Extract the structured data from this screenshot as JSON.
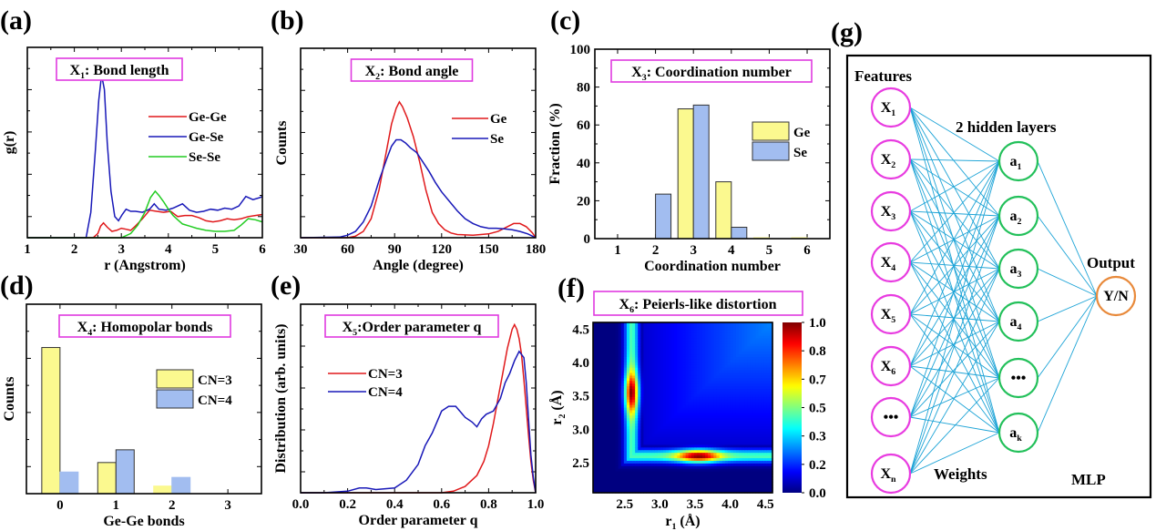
{
  "chart_data": [
    {
      "id": "a",
      "panel_label": "(a)",
      "type": "line",
      "title": "X1: Bond length",
      "title_main": "X",
      "title_sub": "1",
      "title_rest": ": Bond length",
      "xlabel": "r (Angstrom)",
      "ylabel": "g(r)",
      "xlim": [
        1,
        6
      ],
      "ylim": [
        0,
        9
      ],
      "xticks": [
        "1",
        "2",
        "3",
        "4",
        "5",
        "6"
      ],
      "legend_position": "top-right",
      "series": [
        {
          "name": "Ge-Ge",
          "color": "#e0191b",
          "x": [
            1,
            2.4,
            2.5,
            2.56,
            2.62,
            2.7,
            2.8,
            2.9,
            3.0,
            3.1,
            3.2,
            3.3,
            3.45,
            3.6,
            3.75,
            3.9,
            4.05,
            4.2,
            4.35,
            4.5,
            4.65,
            4.8,
            4.95,
            5.1,
            5.25,
            5.4,
            5.55,
            5.7,
            5.85,
            6.0
          ],
          "y": [
            0,
            0,
            0.2,
            0.55,
            0.7,
            0.5,
            0.3,
            0.35,
            0.45,
            0.4,
            0.35,
            0.55,
            0.9,
            1.3,
            1.25,
            1.2,
            1.25,
            1.0,
            1.05,
            1.05,
            0.95,
            0.8,
            0.75,
            0.8,
            0.9,
            0.85,
            0.9,
            1.0,
            1.05,
            1.1
          ]
        },
        {
          "name": "Ge-Se",
          "color": "#1818b8",
          "x": [
            1,
            2.25,
            2.35,
            2.45,
            2.52,
            2.58,
            2.64,
            2.7,
            2.78,
            2.86,
            2.94,
            3.02,
            3.1,
            3.2,
            3.3,
            3.45,
            3.6,
            3.7,
            3.8,
            3.95,
            4.1,
            4.3,
            4.45,
            4.6,
            4.75,
            4.9,
            5.05,
            5.2,
            5.35,
            5.5,
            5.65,
            5.8,
            5.95,
            6.0
          ],
          "y": [
            0,
            0,
            1.2,
            4.2,
            6.5,
            7.7,
            7.0,
            4.5,
            2.2,
            1.0,
            0.8,
            1.1,
            1.35,
            1.25,
            1.25,
            1.2,
            1.35,
            1.6,
            1.35,
            1.3,
            1.4,
            1.6,
            1.3,
            1.2,
            1.25,
            1.35,
            1.3,
            1.4,
            1.35,
            1.5,
            1.95,
            1.8,
            1.9,
            1.95
          ]
        },
        {
          "name": "Se-Se",
          "color": "#22cc22",
          "x": [
            1,
            3.0,
            3.2,
            3.35,
            3.5,
            3.62,
            3.72,
            3.8,
            3.9,
            4.0,
            4.1,
            4.2,
            4.3,
            4.45,
            4.6,
            4.8,
            5.0,
            5.2,
            5.4,
            5.55,
            5.7,
            5.85,
            6.0
          ],
          "y": [
            0,
            0,
            0.2,
            0.6,
            1.2,
            1.9,
            2.2,
            2.0,
            1.7,
            1.35,
            1.05,
            0.85,
            0.65,
            0.55,
            0.45,
            0.35,
            0.3,
            0.3,
            0.35,
            0.6,
            0.9,
            0.85,
            0.75
          ]
        }
      ]
    },
    {
      "id": "b",
      "panel_label": "(b)",
      "type": "line",
      "title": "X2: Bond angle",
      "title_main": "X",
      "title_sub": "2",
      "title_rest": ": Bond angle",
      "xlabel": "Angle (degree)",
      "ylabel": "Counts",
      "xlim": [
        30,
        180
      ],
      "ylim": [
        0,
        6
      ],
      "xticks": [
        "30",
        "60",
        "90",
        "120",
        "150",
        "180"
      ],
      "legend_position": "top-right",
      "series": [
        {
          "name": "Ge",
          "color": "#e0191b",
          "x": [
            30,
            60,
            65,
            70,
            75,
            80,
            85,
            88,
            91,
            93,
            95,
            98,
            102,
            106,
            110,
            114,
            118,
            122,
            126,
            130,
            140,
            150,
            156,
            162,
            166,
            170,
            174,
            178,
            180
          ],
          "y": [
            0,
            0,
            0.05,
            0.2,
            0.6,
            1.5,
            2.8,
            3.6,
            4.1,
            4.3,
            4.15,
            3.8,
            3.2,
            2.4,
            1.5,
            0.8,
            0.45,
            0.25,
            0.15,
            0.1,
            0.08,
            0.12,
            0.2,
            0.35,
            0.45,
            0.45,
            0.35,
            0.15,
            0
          ]
        },
        {
          "name": "Se",
          "color": "#1818b8",
          "x": [
            30,
            55,
            60,
            65,
            70,
            75,
            80,
            85,
            88,
            91,
            94,
            97,
            100,
            104,
            108,
            112,
            116,
            120,
            125,
            130,
            135,
            140,
            145,
            150,
            155,
            160,
            165,
            170,
            175,
            180
          ],
          "y": [
            0,
            0.02,
            0.08,
            0.2,
            0.5,
            1.0,
            1.8,
            2.5,
            2.9,
            3.1,
            3.1,
            3.0,
            2.85,
            2.7,
            2.4,
            2.1,
            1.75,
            1.45,
            1.15,
            0.85,
            0.6,
            0.45,
            0.35,
            0.3,
            0.3,
            0.28,
            0.25,
            0.2,
            0.12,
            0
          ]
        }
      ]
    },
    {
      "id": "c",
      "panel_label": "(c)",
      "type": "bar",
      "title": "X3: Coordination number",
      "title_main": "X",
      "title_sub": "3",
      "title_rest": ": Coordination number",
      "xlabel": "Coordination number",
      "ylabel": "Fraction (%)",
      "categories": [
        "1",
        "2",
        "3",
        "4",
        "5",
        "6"
      ],
      "ylim": [
        0,
        100
      ],
      "yticks": [
        "0",
        "20",
        "40",
        "60",
        "80",
        "100"
      ],
      "legend_position": "right",
      "series": [
        {
          "name": "Ge",
          "color": "#fbf98f",
          "values": [
            0,
            0,
            68.5,
            30,
            0.5,
            0.5
          ]
        },
        {
          "name": "Se",
          "color": "#a2bdf0",
          "values": [
            0,
            23.5,
            70.5,
            6,
            0,
            0
          ]
        }
      ]
    },
    {
      "id": "d",
      "panel_label": "(d)",
      "type": "bar",
      "title": "X4: Homopolar bonds",
      "title_main": "X",
      "title_sub": "4",
      "title_rest": ": Homopolar bonds",
      "xlabel": "Ge-Ge bonds",
      "ylabel": "Counts",
      "categories": [
        "0",
        "1",
        "2",
        "3"
      ],
      "ylim": [
        0,
        7
      ],
      "legend_position": "right",
      "series": [
        {
          "name": "CN=3",
          "color": "#fbf98f",
          "values": [
            5.4,
            1.15,
            0.28,
            0
          ]
        },
        {
          "name": "CN=4",
          "color": "#a2bdf0",
          "values": [
            0.8,
            1.62,
            0.6,
            0
          ]
        }
      ]
    },
    {
      "id": "e",
      "panel_label": "(e)",
      "type": "line",
      "title": "X5:Order parameter q",
      "title_main": "X",
      "title_sub": "5",
      "title_rest": ":Order parameter q",
      "xlabel": "Order parameter q",
      "ylabel": "Distribution (arb. units)",
      "xlim": [
        0.0,
        1.0
      ],
      "ylim": [
        0,
        6
      ],
      "xticks": [
        "0.0",
        "0.2",
        "0.4",
        "0.6",
        "0.8",
        "1.0"
      ],
      "legend_position": "top-left",
      "series": [
        {
          "name": "CN=3",
          "color": "#e0191b",
          "x": [
            0,
            0.6,
            0.65,
            0.7,
            0.75,
            0.78,
            0.8,
            0.82,
            0.84,
            0.86,
            0.88,
            0.9,
            0.91,
            0.92,
            0.93,
            0.94,
            0.95,
            0.96,
            0.97,
            0.98,
            0.99,
            1.0
          ],
          "y": [
            0,
            0,
            0.05,
            0.2,
            0.55,
            1.0,
            1.5,
            2.2,
            3.0,
            3.8,
            4.6,
            5.2,
            5.35,
            5.2,
            4.9,
            4.4,
            3.6,
            2.7,
            1.8,
            1.0,
            0.4,
            0
          ]
        },
        {
          "name": "CN=4",
          "color": "#1818b8",
          "x": [
            0,
            0.1,
            0.2,
            0.25,
            0.28,
            0.32,
            0.4,
            0.45,
            0.5,
            0.53,
            0.56,
            0.6,
            0.63,
            0.66,
            0.7,
            0.73,
            0.75,
            0.77,
            0.79,
            0.82,
            0.85,
            0.87,
            0.89,
            0.91,
            0.93,
            0.95,
            0.96,
            0.97,
            0.98,
            0.99,
            1.0
          ],
          "y": [
            0,
            0,
            0.05,
            0.15,
            0.15,
            0.1,
            0.15,
            0.4,
            0.9,
            1.5,
            1.9,
            2.6,
            2.75,
            2.75,
            2.4,
            2.25,
            2.1,
            2.35,
            2.5,
            2.6,
            3.0,
            3.5,
            3.8,
            4.2,
            4.5,
            4.3,
            3.5,
            2.3,
            1.2,
            0.5,
            0
          ]
        }
      ]
    },
    {
      "id": "f",
      "panel_label": "(f)",
      "type": "heatmap",
      "title": "X6: Peierls-like distortion",
      "title_main": "X",
      "title_sub": "6",
      "title_rest": ": Peierls-like distortion",
      "xlabel": "r1 (Å)",
      "xlabel_main": "r",
      "xlabel_sub": "1",
      "xlabel_rest": " (Å)",
      "ylabel": "r2 (Å)",
      "ylabel_main": "r",
      "ylabel_sub": "2",
      "ylabel_rest": " (Å)",
      "xlim": [
        2.05,
        4.6
      ],
      "ylim": [
        2.05,
        4.6
      ],
      "xticks": [
        "2.5",
        "3.0",
        "3.5",
        "4.0",
        "4.5"
      ],
      "yticks": [
        "2.5",
        "3.0",
        "3.5",
        "4.0",
        "4.5"
      ],
      "colorbar": {
        "min": 0.0,
        "max": 1.0,
        "ticks": [
          "0.0",
          "0.2",
          "0.3",
          "0.5",
          "0.7",
          "0.8",
          "1.0"
        ],
        "colormap": "jet"
      },
      "features": {
        "ridge_r": 2.6,
        "peak_other_r": 3.55,
        "peak_value": 1.0,
        "background_far": 0.25
      }
    }
  ],
  "diagram": {
    "panel_label": "(g)",
    "features_label": "Features",
    "hidden_label": "2 hidden layers",
    "output_label": "Output",
    "weights_label": "Weights",
    "model_label": "MLP",
    "inputs": [
      {
        "main": "X",
        "sub": "1"
      },
      {
        "main": "X",
        "sub": "2"
      },
      {
        "main": "X",
        "sub": "3"
      },
      {
        "main": "X",
        "sub": "4"
      },
      {
        "main": "X",
        "sub": "5"
      },
      {
        "main": "X",
        "sub": "6"
      },
      {
        "main": "•••",
        "sub": ""
      },
      {
        "main": "X",
        "sub": "n"
      }
    ],
    "hidden": [
      {
        "main": "a",
        "sub": "1"
      },
      {
        "main": "a",
        "sub": "2"
      },
      {
        "main": "a",
        "sub": "3"
      },
      {
        "main": "a",
        "sub": "4"
      },
      {
        "main": "•••",
        "sub": ""
      },
      {
        "main": "a",
        "sub": "k"
      }
    ],
    "output": {
      "main": "Y/N"
    },
    "colors": {
      "input": "#e83be0",
      "hidden": "#22c05a",
      "output": "#e8893a",
      "edge": "#1ca3d6",
      "title_box": "#e03ae0"
    }
  }
}
